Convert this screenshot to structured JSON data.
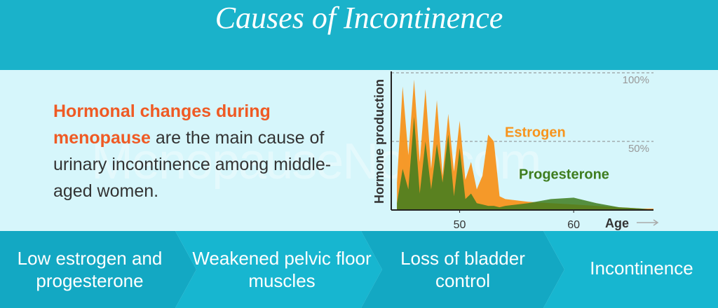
{
  "header": {
    "title": "Causes of Incontinence"
  },
  "body": {
    "highlight": "Hormonal changes during menopause",
    "text": "are the main cause of urinary incontinence among middle-aged women."
  },
  "watermark": "MenopauseNow.com",
  "chart_data": {
    "type": "area",
    "xlabel": "Age",
    "ylabel": "Hormone production",
    "x": [
      44.5,
      45,
      45.5,
      46,
      46.5,
      47,
      47.5,
      48,
      48.5,
      49,
      49.5,
      50,
      50.5,
      51,
      51.5,
      52,
      52.5,
      53,
      53.5,
      54,
      56,
      58,
      60,
      62,
      64,
      66,
      67
    ],
    "series": [
      {
        "name": "Estrogen",
        "color": "#f7941d",
        "values": [
          20,
          90,
          40,
          95,
          35,
          88,
          30,
          80,
          25,
          70,
          28,
          65,
          22,
          35,
          15,
          25,
          55,
          50,
          10,
          8,
          6,
          5,
          4,
          3,
          2,
          1,
          1
        ]
      },
      {
        "name": "Progesterone",
        "color": "#3e7d1e",
        "values": [
          5,
          30,
          15,
          68,
          12,
          50,
          15,
          48,
          20,
          55,
          10,
          45,
          8,
          12,
          5,
          4,
          3,
          3,
          2,
          3,
          5,
          8,
          9,
          5,
          2,
          1,
          0
        ]
      }
    ],
    "xlim": [
      44,
      67
    ],
    "ylim": [
      0,
      100
    ],
    "xticks": [
      50,
      60
    ],
    "yticks": [
      {
        "value": 100,
        "label": "100%"
      },
      {
        "value": 50,
        "label": "50%"
      }
    ]
  },
  "steps": [
    "Low estrogen and progesterone",
    "Weakened pelvic floor muscles",
    "Loss of bladder control",
    "Incontinence"
  ]
}
